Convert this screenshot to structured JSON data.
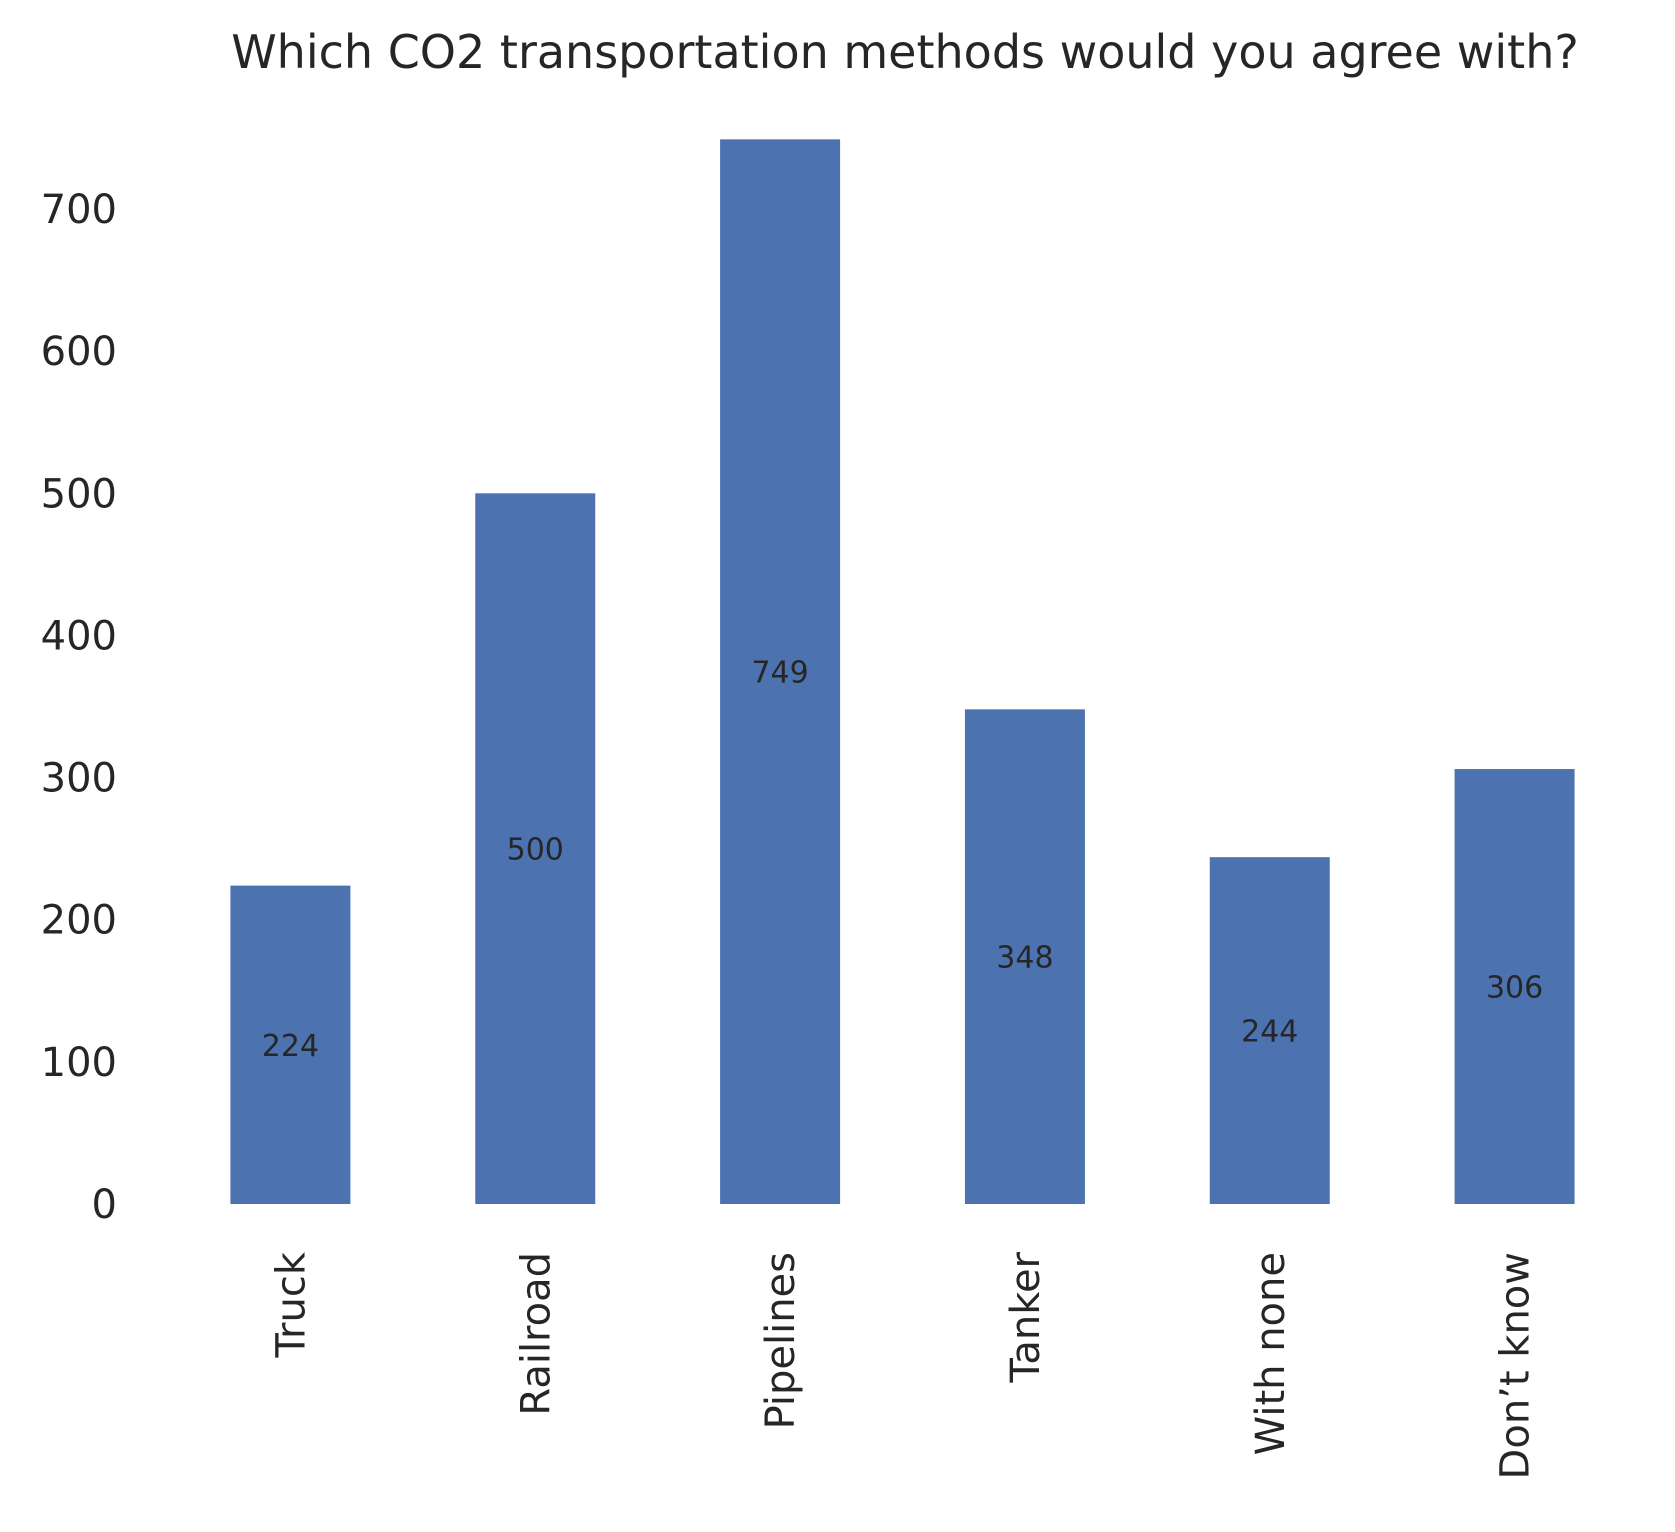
{
  "chart_data": {
    "type": "bar",
    "title": "Which CO2 transportation methods would you agree with?",
    "xlabel": "",
    "ylabel": "",
    "categories": [
      "Truck",
      "Railroad",
      "Pipelines",
      "Tanker",
      "With none",
      "Don’t know"
    ],
    "values": [
      224,
      500,
      749,
      348,
      244,
      306
    ],
    "data_labels": [
      "224",
      "500",
      "749",
      "348",
      "244",
      "306"
    ],
    "yticks": [
      0,
      100,
      200,
      300,
      400,
      500,
      600,
      700
    ],
    "ytick_labels": [
      "0",
      "100",
      "200",
      "300",
      "400",
      "500",
      "600",
      "700"
    ],
    "ylim": [
      0,
      749
    ],
    "grid": false,
    "bar_color": "#4c72b0",
    "text_color": "#262626",
    "xtick_rotation": "vertical",
    "data_label_position": "mid-bar"
  }
}
